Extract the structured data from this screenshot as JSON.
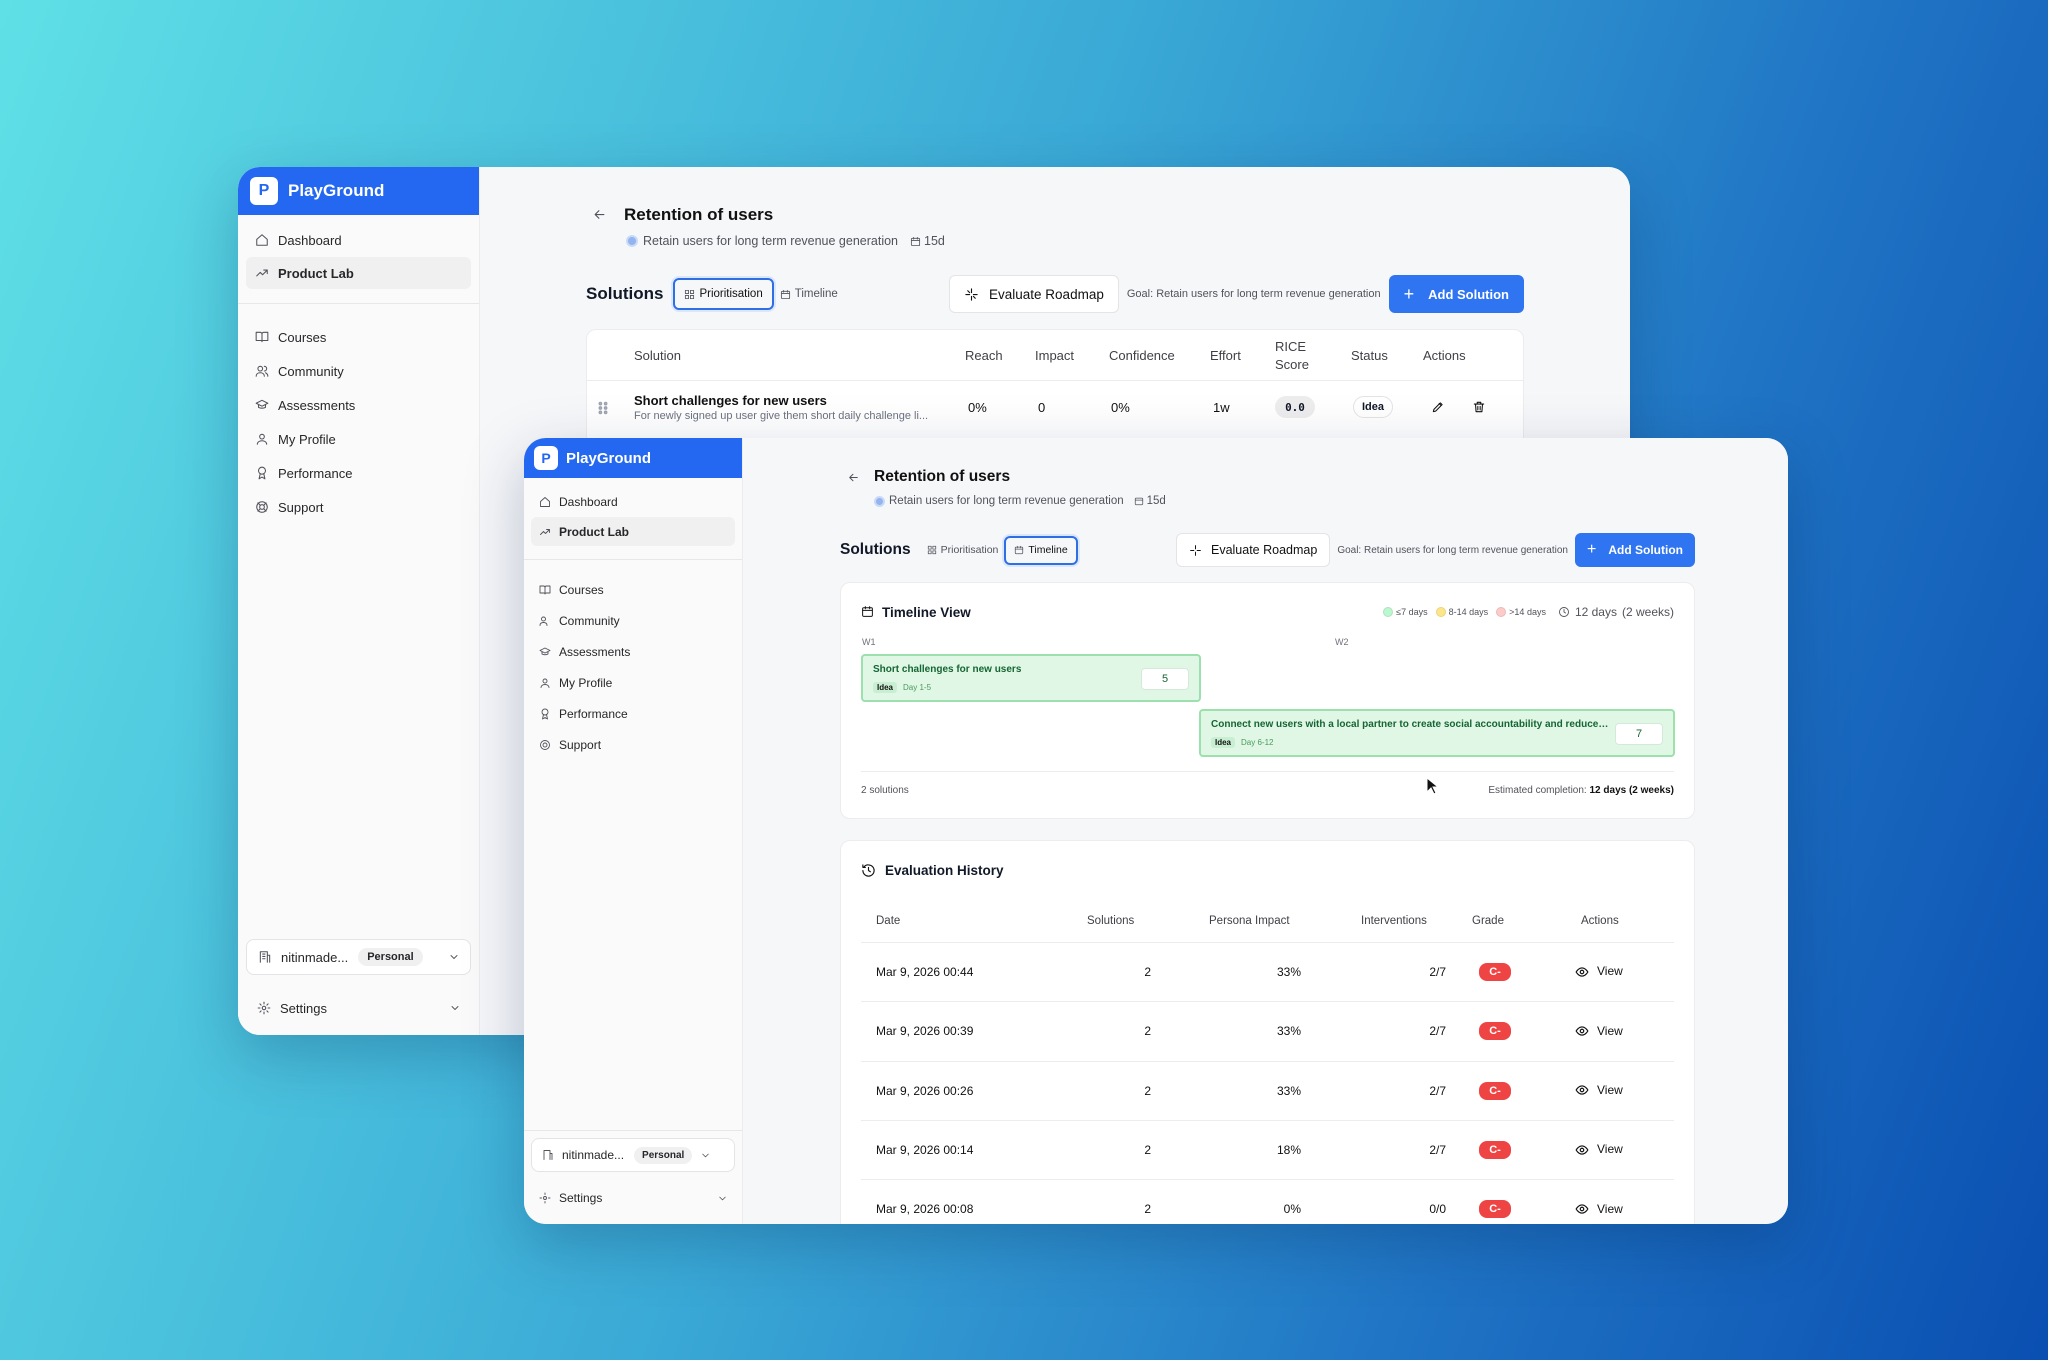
{
  "brand": {
    "name": "PlayGround",
    "logo_letter": "P"
  },
  "nav_primary": [
    "Dashboard",
    "Product Lab"
  ],
  "nav_secondary": [
    "Courses",
    "Community",
    "Assessments",
    "My Profile",
    "Performance",
    "Support"
  ],
  "account": {
    "name": "nitinmade...",
    "plan": "Personal"
  },
  "settings_label": "Settings",
  "page": {
    "title": "Retention of users",
    "goal_text": "Retain users for long term revenue generation",
    "duration": "15d"
  },
  "toolbar": {
    "solutions_label": "Solutions",
    "tab_prioritisation": "Prioritisation",
    "tab_timeline": "Timeline",
    "evaluate_label": "Evaluate Roadmap",
    "goal_label": "Goal: Retain users for long term revenue generation",
    "add_label": "Add Solution"
  },
  "table": {
    "headers": {
      "solution": "Solution",
      "reach": "Reach",
      "impact": "Impact",
      "confidence": "Confidence",
      "effort": "Effort",
      "rice1": "RICE",
      "rice2": "Score",
      "status": "Status",
      "actions": "Actions"
    },
    "row": {
      "name": "Short challenges for new users",
      "desc": "For newly signed up user give them short daily challenge li...",
      "reach": "0%",
      "impact": "0",
      "confidence": "0%",
      "effort": "1w",
      "rice": "0.0",
      "status": "Idea"
    }
  },
  "timeline": {
    "title": "Timeline View",
    "legend": [
      "≤7 days",
      "8-14 days",
      ">14 days"
    ],
    "legend_colors": [
      "#bbf7d0",
      "#fde68a",
      "#fecaca"
    ],
    "total": "12 days",
    "total_weeks": "(2 weeks)",
    "weeks": [
      "W1",
      "W2"
    ],
    "bars": [
      {
        "name": "Short challenges for new users",
        "status": "Idea",
        "days": "Day 1-5",
        "value": "5"
      },
      {
        "name": "Connect new users with a local partner to create social accountability and reduce th...",
        "status": "Idea",
        "days": "Day 6-12",
        "value": "7"
      }
    ],
    "count": "2 solutions",
    "est_label": "Estimated completion:",
    "est_value": "12 days (2 weeks)"
  },
  "history": {
    "title": "Evaluation History",
    "headers": {
      "date": "Date",
      "solutions": "Solutions",
      "persona": "Persona Impact",
      "interventions": "Interventions",
      "grade": "Grade",
      "actions": "Actions"
    },
    "rows": [
      {
        "date": "Mar 9, 2026 00:44",
        "solutions": "2",
        "persona": "33%",
        "interventions": "2/7",
        "grade": "C-",
        "action": "View"
      },
      {
        "date": "Mar 9, 2026 00:39",
        "solutions": "2",
        "persona": "33%",
        "interventions": "2/7",
        "grade": "C-",
        "action": "View"
      },
      {
        "date": "Mar 9, 2026 00:26",
        "solutions": "2",
        "persona": "33%",
        "interventions": "2/7",
        "grade": "C-",
        "action": "View"
      },
      {
        "date": "Mar 9, 2026 00:14",
        "solutions": "2",
        "persona": "18%",
        "interventions": "2/7",
        "grade": "C-",
        "action": "View"
      },
      {
        "date": "Mar 9, 2026 00:08",
        "solutions": "2",
        "persona": "0%",
        "interventions": "0/0",
        "grade": "C-",
        "action": "View"
      }
    ]
  }
}
